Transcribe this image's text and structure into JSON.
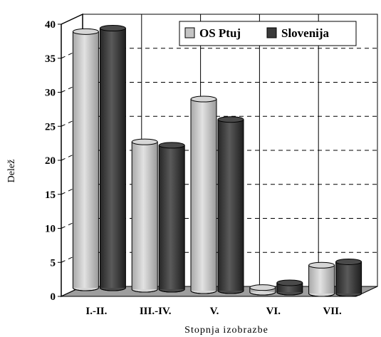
{
  "chart_data": {
    "type": "bar",
    "title": "",
    "xlabel": "Stopnja izobrazbe",
    "ylabel": "Delež",
    "ylim": [
      0,
      40
    ],
    "yticks": [
      0,
      5,
      10,
      15,
      20,
      25,
      30,
      35,
      40
    ],
    "categories": [
      "I.-II.",
      "III.-IV.",
      "V.",
      "VI.",
      "VII."
    ],
    "series": [
      {
        "name": "OS Ptuj",
        "values": [
          38.5,
          22.5,
          29.0,
          1.5,
          5.0
        ],
        "color": "#c4c4c4"
      },
      {
        "name": "Slovenija",
        "values": [
          39.0,
          22.0,
          26.0,
          2.2,
          5.5
        ],
        "color": "#3a3a3a"
      }
    ],
    "legend": "top-right",
    "grid": true,
    "style": "3d-cylinder"
  }
}
